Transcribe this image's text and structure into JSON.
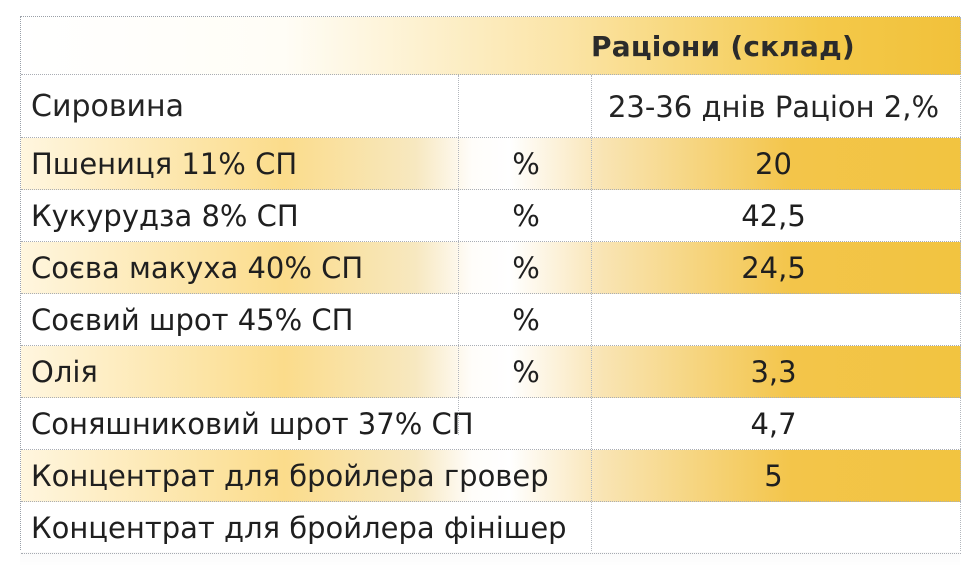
{
  "table": {
    "title": "Раціони (склад)",
    "subheader_left": "Сировина",
    "subheader_right": "23-36 днів Раціон 2,%",
    "rows": [
      {
        "name": "Пшениця 11% СП",
        "unit": "%",
        "value": "20"
      },
      {
        "name": "Кукурудза 8% СП",
        "unit": "%",
        "value": "42,5"
      },
      {
        "name": "Соєва макуха 40% СП",
        "unit": "%",
        "value": "24,5"
      },
      {
        "name": "Соєвий шрот 45% СП",
        "unit": "%",
        "value": ""
      },
      {
        "name": "Олія",
        "unit": "%",
        "value": "3,3"
      },
      {
        "name": "Соняшниковий шрот 37% СП",
        "unit": "",
        "value": "4,7"
      },
      {
        "name": "Концентрат для бройлера гровер",
        "unit": "",
        "value": "5"
      },
      {
        "name": "Концентрат для бройлера фінішер",
        "unit": "",
        "value": ""
      }
    ]
  }
}
